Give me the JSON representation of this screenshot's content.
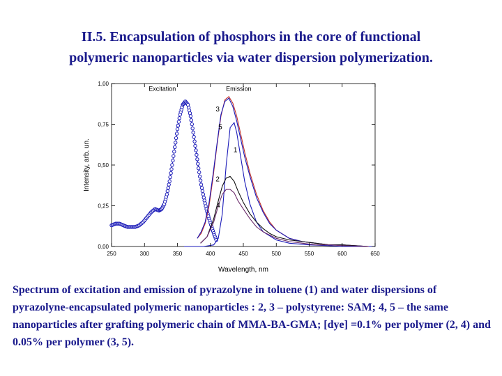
{
  "title": {
    "line1": "II.5. Encapsulation of phosphors in the core of functional",
    "line2": "polymeric nanoparticles via water dispersion polymerization."
  },
  "caption": "Spectrum of excitation and emission of pyrazolyne  in toluene (1) and water dispersions of pyrazolyne-encapsulated polymeric nanoparticles : 2, 3 – polystyrene: SAM; 4, 5 – the same nanoparticles after grafting  polymeric chain of MMA-BA-GMA; [dye] =0.1% per polymer (2, 4) and 0.05% per polymer (3, 5).",
  "chart_data": {
    "type": "line",
    "xlabel": "Wavelength, nm",
    "ylabel": "Intensity, arb. un.",
    "xlim": [
      250,
      650
    ],
    "ylim": [
      0,
      1.0
    ],
    "x_ticks": [
      "250",
      "300",
      "350",
      "400",
      "450",
      "500",
      "550",
      "600",
      "650"
    ],
    "y_ticks": [
      "0,00",
      "0,25",
      "0,50",
      "0,75",
      "1,00"
    ],
    "annotations": [
      "Excitation",
      "Emission",
      "3",
      "5",
      "1",
      "2",
      "4"
    ],
    "grid": false,
    "series": [
      {
        "name": "Excitation",
        "color": "#1a1ab8",
        "marker": "open-circle",
        "x": [
          250,
          256,
          262,
          268,
          274,
          280,
          286,
          292,
          298,
          304,
          310,
          316,
          322,
          326,
          330,
          334,
          338,
          342,
          346,
          350,
          354,
          358,
          362,
          366,
          370,
          374,
          378,
          382,
          386,
          390,
          394,
          398,
          402,
          406,
          410
        ],
        "y": [
          0.13,
          0.14,
          0.14,
          0.13,
          0.12,
          0.12,
          0.12,
          0.13,
          0.15,
          0.18,
          0.21,
          0.23,
          0.22,
          0.23,
          0.26,
          0.32,
          0.4,
          0.5,
          0.61,
          0.72,
          0.81,
          0.87,
          0.89,
          0.87,
          0.8,
          0.7,
          0.59,
          0.48,
          0.38,
          0.3,
          0.23,
          0.17,
          0.12,
          0.07,
          0.03
        ]
      },
      {
        "name": "1",
        "color": "#1a1ab8",
        "marker": "none",
        "x": [
          360,
          390,
          405,
          412,
          418,
          424,
          430,
          436,
          440,
          446,
          452,
          460,
          470,
          480,
          500,
          520,
          550,
          580,
          600,
          650
        ],
        "y": [
          0.0,
          0.0,
          0.01,
          0.05,
          0.2,
          0.5,
          0.73,
          0.76,
          0.7,
          0.55,
          0.4,
          0.26,
          0.15,
          0.09,
          0.04,
          0.02,
          0.01,
          0.005,
          0.0,
          0.0
        ]
      },
      {
        "name": "3",
        "color": "#c0302a",
        "marker": "none",
        "x": [
          380,
          386,
          392,
          398,
          404,
          410,
          416,
          422,
          428,
          434,
          440,
          446,
          452,
          460,
          470,
          480,
          490,
          500,
          520,
          540,
          560,
          580,
          600,
          620,
          640
        ],
        "y": [
          0.05,
          0.08,
          0.14,
          0.25,
          0.42,
          0.62,
          0.8,
          0.9,
          0.92,
          0.88,
          0.8,
          0.69,
          0.58,
          0.45,
          0.32,
          0.22,
          0.15,
          0.1,
          0.05,
          0.03,
          0.02,
          0.01,
          0.01,
          0.005,
          0.0
        ]
      },
      {
        "name": "5",
        "color": "#1a1ab8",
        "marker": "none",
        "x": [
          380,
          386,
          392,
          398,
          404,
          410,
          416,
          422,
          428,
          434,
          440,
          446,
          452,
          460,
          470,
          480,
          490,
          500,
          520,
          540,
          560,
          580,
          600,
          620,
          640
        ],
        "y": [
          0.05,
          0.09,
          0.15,
          0.27,
          0.44,
          0.63,
          0.81,
          0.89,
          0.91,
          0.86,
          0.77,
          0.66,
          0.55,
          0.43,
          0.3,
          0.21,
          0.14,
          0.1,
          0.05,
          0.03,
          0.02,
          0.01,
          0.01,
          0.005,
          0.0
        ]
      },
      {
        "name": "2",
        "color": "#111111",
        "marker": "none",
        "x": [
          385,
          395,
          405,
          412,
          418,
          424,
          430,
          436,
          442,
          450,
          460,
          470,
          480,
          490,
          500,
          520,
          540,
          560,
          580,
          600,
          640
        ],
        "y": [
          0.02,
          0.06,
          0.17,
          0.28,
          0.37,
          0.42,
          0.43,
          0.4,
          0.34,
          0.27,
          0.2,
          0.15,
          0.11,
          0.08,
          0.06,
          0.04,
          0.03,
          0.02,
          0.01,
          0.01,
          0.0
        ]
      },
      {
        "name": "4",
        "color": "#6a2a6a",
        "marker": "none",
        "x": [
          385,
          395,
          405,
          412,
          418,
          424,
          430,
          436,
          442,
          450,
          460,
          470,
          480,
          490,
          500,
          520,
          540,
          560,
          580,
          600,
          640
        ],
        "y": [
          0.02,
          0.06,
          0.15,
          0.25,
          0.32,
          0.35,
          0.35,
          0.33,
          0.28,
          0.23,
          0.17,
          0.12,
          0.09,
          0.07,
          0.05,
          0.03,
          0.02,
          0.01,
          0.01,
          0.005,
          0.0
        ]
      }
    ]
  }
}
